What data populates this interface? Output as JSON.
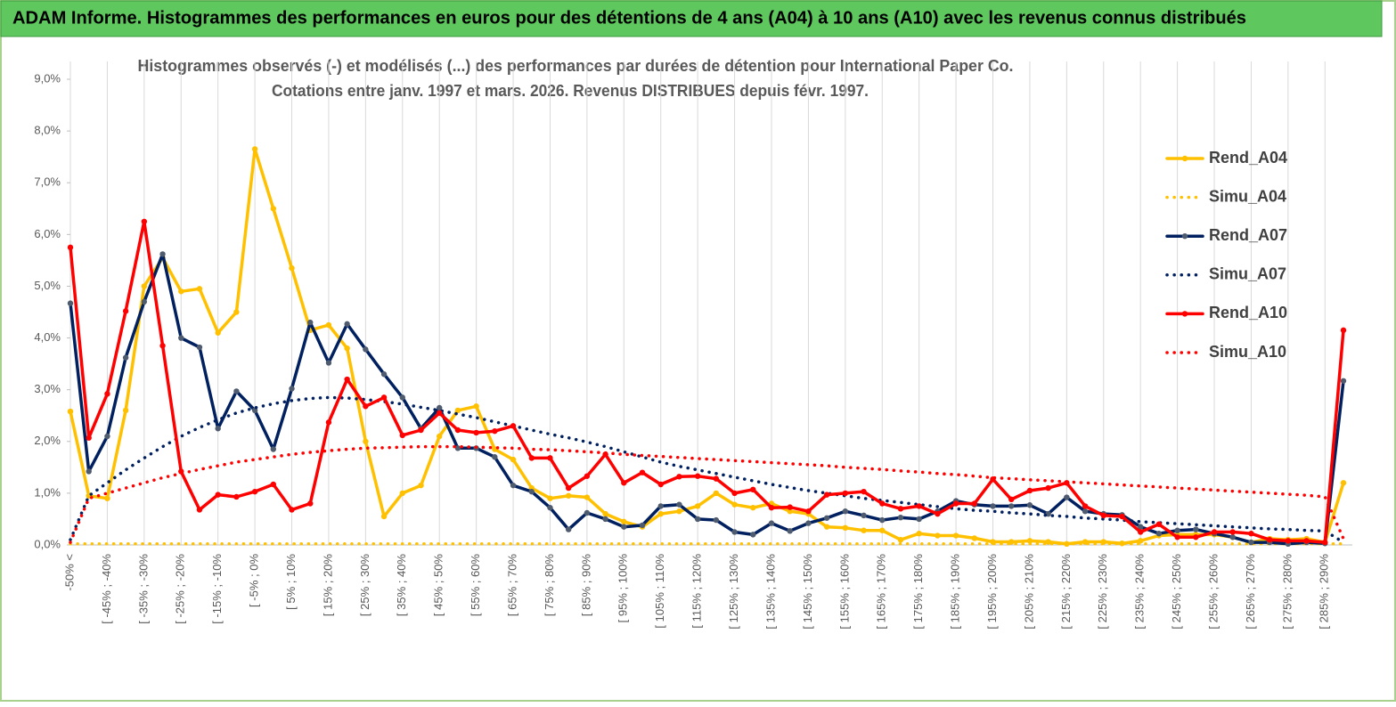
{
  "header": {
    "title": "ADAM Informe. Histogrammes des performances en euros pour des détentions de 4 ans (A04) à 10 ans (A10) avec les revenus connus distribués"
  },
  "chart_data": {
    "type": "line",
    "title": "Histogrammes observés (-)  et modélisés (...) des performances par durées de détention pour International Paper Co.",
    "subtitle": "Cotations entre janv. 1997 et mars. 2026.  Revenus DISTRIBUES depuis févr. 1997.",
    "categories": [
      "-50% <",
      null,
      "[ -45% ; -40%",
      null,
      "[ -35% ; -30%",
      null,
      "[ -25% ; -20%",
      null,
      "[ -15% ; -10%",
      null,
      "[ -5% ; 0%",
      null,
      "[ 5% ; 10%",
      null,
      "[ 15% ; 20%",
      null,
      "[ 25% ; 30%",
      null,
      "[ 35% ; 40%",
      null,
      "[ 45% ; 50%",
      null,
      "[ 55% ; 60%",
      null,
      "[ 65% ; 70%",
      null,
      "[ 75% ; 80%",
      null,
      "[ 85% ; 90%",
      null,
      "[ 95% ; 100%",
      null,
      "[ 105% ; 110%",
      null,
      "[ 115% ; 120%",
      null,
      "[ 125% ; 130%",
      null,
      "[ 135% ; 140%",
      null,
      "[ 145% ; 150%",
      null,
      "[ 155% ; 160%",
      null,
      "[ 165% ; 170%",
      null,
      "[ 175% ; 180%",
      null,
      "[ 185% ; 190%",
      null,
      "[ 195% ; 200%",
      null,
      "[ 205% ; 210%",
      null,
      "[ 215% ; 220%",
      null,
      "[ 225% ; 230%",
      null,
      "[ 235% ; 240%",
      null,
      "[ 245% ; 250%",
      null,
      "[ 255% ; 260%",
      null,
      "[ 265% ; 270%",
      null,
      "[ 275% ; 280%",
      null,
      "[ 285% ; 290%",
      null
    ],
    "ylim": [
      0,
      9
    ],
    "yticks": [
      {
        "value": 0,
        "label": "0,0%"
      },
      {
        "value": 1,
        "label": "1,0%"
      },
      {
        "value": 2,
        "label": "2,0%"
      },
      {
        "value": 3,
        "label": "3,0%"
      },
      {
        "value": 4,
        "label": "4,0%"
      },
      {
        "value": 5,
        "label": "5,0%"
      },
      {
        "value": 6,
        "label": "6,0%"
      },
      {
        "value": 7,
        "label": "7,0%"
      },
      {
        "value": 8,
        "label": "8,0%"
      },
      {
        "value": 9,
        "label": "9,0%"
      }
    ],
    "legend": "right",
    "series": [
      {
        "name": "Rend_A04",
        "color": "#ffc000",
        "style": "solid",
        "markers": true,
        "marker_color": "#ffc000",
        "values": [
          2.58,
          0.95,
          0.9,
          2.6,
          5.0,
          5.55,
          4.9,
          4.95,
          4.1,
          4.5,
          7.65,
          6.5,
          5.35,
          4.15,
          4.25,
          3.8,
          2.0,
          0.55,
          1.0,
          1.15,
          2.1,
          2.6,
          2.68,
          1.85,
          1.65,
          1.1,
          0.9,
          0.95,
          0.92,
          0.6,
          0.45,
          0.35,
          0.6,
          0.65,
          0.75,
          1.0,
          0.78,
          0.72,
          0.8,
          0.65,
          0.6,
          0.35,
          0.33,
          0.28,
          0.28,
          0.1,
          0.22,
          0.18,
          0.18,
          0.13,
          0.06,
          0.06,
          0.08,
          0.06,
          0.02,
          0.06,
          0.06,
          0.03,
          0.08,
          0.18,
          0.2,
          0.2,
          0.2,
          0.15,
          0.05,
          0.12,
          0.1,
          0.12,
          0.05,
          1.2
        ]
      },
      {
        "name": "Simu_A04",
        "color": "#ffc000",
        "style": "dotted",
        "markers": false,
        "values": [
          0.02,
          0.02,
          0.02,
          0.02,
          0.02,
          0.02,
          0.02,
          0.02,
          0.02,
          0.02,
          0.02,
          0.02,
          0.02,
          0.02,
          0.02,
          0.02,
          0.02,
          0.02,
          0.02,
          0.02,
          0.02,
          0.02,
          0.02,
          0.02,
          0.02,
          0.02,
          0.02,
          0.02,
          0.02,
          0.02,
          0.02,
          0.02,
          0.02,
          0.02,
          0.02,
          0.02,
          0.02,
          0.02,
          0.02,
          0.02,
          0.02,
          0.02,
          0.02,
          0.02,
          0.02,
          0.02,
          0.02,
          0.02,
          0.02,
          0.02,
          0.02,
          0.02,
          0.02,
          0.02,
          0.02,
          0.02,
          0.02,
          0.02,
          0.02,
          0.02,
          0.02,
          0.02,
          0.02,
          0.02,
          0.02,
          0.02,
          0.02,
          0.02,
          0.02,
          0.02
        ]
      },
      {
        "name": "Rend_A07",
        "color": "#002060",
        "style": "solid",
        "markers": true,
        "marker_color": "#4f5b6e",
        "values": [
          4.67,
          1.42,
          2.1,
          3.62,
          4.7,
          5.62,
          4.0,
          3.82,
          2.25,
          2.97,
          2.6,
          1.85,
          3.02,
          4.3,
          3.52,
          4.27,
          3.78,
          3.3,
          2.85,
          2.25,
          2.65,
          1.87,
          1.87,
          1.7,
          1.15,
          1.03,
          0.72,
          0.3,
          0.62,
          0.5,
          0.35,
          0.38,
          0.75,
          0.78,
          0.5,
          0.48,
          0.25,
          0.2,
          0.42,
          0.27,
          0.42,
          0.52,
          0.65,
          0.57,
          0.48,
          0.53,
          0.5,
          0.65,
          0.85,
          0.78,
          0.75,
          0.75,
          0.77,
          0.6,
          0.92,
          0.65,
          0.6,
          0.58,
          0.35,
          0.22,
          0.28,
          0.3,
          0.22,
          0.15,
          0.05,
          0.05,
          0.02,
          0.05,
          0.03,
          3.17
        ]
      },
      {
        "name": "Simu_A07",
        "color": "#002060",
        "style": "dotted",
        "markers": false,
        "values": [
          0.1,
          0.95,
          1.2,
          1.45,
          1.68,
          1.9,
          2.1,
          2.27,
          2.42,
          2.55,
          2.65,
          2.73,
          2.79,
          2.83,
          2.85,
          2.84,
          2.81,
          2.77,
          2.72,
          2.66,
          2.6,
          2.53,
          2.46,
          2.38,
          2.3,
          2.22,
          2.14,
          2.07,
          1.99,
          1.9,
          1.8,
          1.7,
          1.6,
          1.52,
          1.45,
          1.38,
          1.31,
          1.24,
          1.17,
          1.11,
          1.05,
          1.0,
          0.95,
          0.9,
          0.86,
          0.82,
          0.78,
          0.74,
          0.7,
          0.67,
          0.65,
          0.62,
          0.6,
          0.57,
          0.55,
          0.52,
          0.5,
          0.48,
          0.45,
          0.43,
          0.41,
          0.39,
          0.37,
          0.35,
          0.33,
          0.31,
          0.3,
          0.28,
          0.27,
          0.05
        ]
      },
      {
        "name": "Rend_A10",
        "color": "#ff0000",
        "style": "solid",
        "markers": true,
        "marker_color": "#ff0000",
        "values": [
          5.75,
          2.07,
          2.92,
          4.52,
          6.25,
          3.85,
          1.42,
          0.68,
          0.97,
          0.93,
          1.03,
          1.17,
          0.68,
          0.8,
          2.37,
          3.2,
          2.68,
          2.85,
          2.12,
          2.22,
          2.55,
          2.22,
          2.17,
          2.2,
          2.3,
          1.68,
          1.68,
          1.1,
          1.33,
          1.75,
          1.2,
          1.4,
          1.17,
          1.32,
          1.33,
          1.28,
          1.0,
          1.07,
          0.72,
          0.73,
          0.65,
          0.97,
          1.0,
          1.03,
          0.8,
          0.7,
          0.75,
          0.6,
          0.8,
          0.8,
          1.27,
          0.88,
          1.05,
          1.1,
          1.2,
          0.75,
          0.57,
          0.55,
          0.25,
          0.4,
          0.15,
          0.15,
          0.25,
          0.25,
          0.22,
          0.1,
          0.08,
          0.08,
          0.05,
          4.15
        ]
      },
      {
        "name": "Simu_A10",
        "color": "#ff0000",
        "style": "dotted",
        "markers": false,
        "values": [
          0.05,
          0.9,
          1.0,
          1.1,
          1.2,
          1.3,
          1.38,
          1.46,
          1.53,
          1.6,
          1.65,
          1.7,
          1.75,
          1.79,
          1.82,
          1.85,
          1.87,
          1.88,
          1.89,
          1.9,
          1.9,
          1.9,
          1.89,
          1.88,
          1.87,
          1.85,
          1.84,
          1.82,
          1.8,
          1.78,
          1.75,
          1.73,
          1.71,
          1.69,
          1.67,
          1.65,
          1.63,
          1.61,
          1.59,
          1.57,
          1.55,
          1.53,
          1.5,
          1.48,
          1.46,
          1.43,
          1.41,
          1.38,
          1.36,
          1.33,
          1.3,
          1.28,
          1.26,
          1.24,
          1.22,
          1.2,
          1.18,
          1.16,
          1.14,
          1.12,
          1.1,
          1.08,
          1.06,
          1.04,
          1.02,
          1.0,
          0.98,
          0.96,
          0.93,
          0.12
        ]
      }
    ]
  }
}
